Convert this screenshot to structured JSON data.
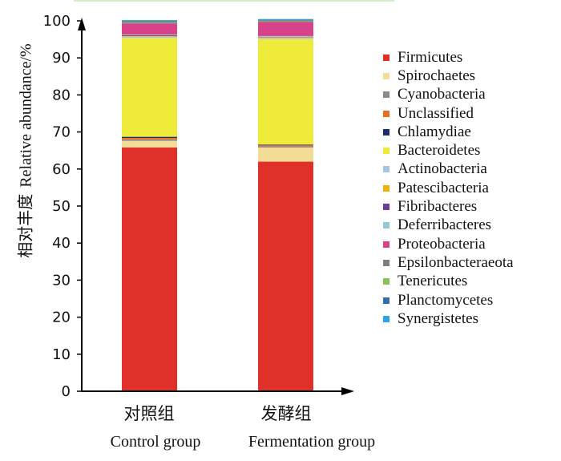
{
  "chart_data": {
    "type": "bar",
    "stacked": true,
    "title": "",
    "ylabel_cn": "相对丰度",
    "ylabel_en": "Relative abundance/%",
    "ylim": [
      0,
      100
    ],
    "yticks": [
      "0",
      "10",
      "20",
      "30",
      "40",
      "50",
      "60",
      "70",
      "80",
      "90",
      "100"
    ],
    "categories": [
      {
        "cn": "对照组",
        "en": "Control group"
      },
      {
        "cn": "发酵组",
        "en": "Fermentation group"
      }
    ],
    "legend_position": "right",
    "series": [
      {
        "name": "Firmicutes",
        "color": "#e0302a",
        "values": [
          65.8,
          62.0
        ]
      },
      {
        "name": "Spirochaetes",
        "color": "#f3dc96",
        "values": [
          1.8,
          3.8
        ]
      },
      {
        "name": "Cyanobacteria",
        "color": "#8c8c8c",
        "values": [
          0.4,
          0.3
        ]
      },
      {
        "name": "Unclassified",
        "color": "#ec6d21",
        "values": [
          0.4,
          0.3
        ]
      },
      {
        "name": "Chlamydiae",
        "color": "#1c2e6b",
        "values": [
          0.3,
          0.2
        ]
      },
      {
        "name": "Bacteroidetes",
        "color": "#eeeb3a",
        "values": [
          26.7,
          28.5
        ]
      },
      {
        "name": "Actinobacteria",
        "color": "#a4c4e6",
        "values": [
          0.3,
          0.3
        ]
      },
      {
        "name": "Patescibacteria",
        "color": "#efb20d",
        "values": [
          0.2,
          0.2
        ]
      },
      {
        "name": "Fibribacteres",
        "color": "#6a3d9a",
        "values": [
          0.2,
          0.1
        ]
      },
      {
        "name": "Deferribacteres",
        "color": "#8fcbd6",
        "values": [
          0.2,
          0.2
        ]
      },
      {
        "name": "Proteobacteria",
        "color": "#d9428b",
        "values": [
          3.0,
          3.8
        ]
      },
      {
        "name": "Epsilonbacteraeota",
        "color": "#7f7f7f",
        "values": [
          0.3,
          0.2
        ]
      },
      {
        "name": "Tenericutes",
        "color": "#8cc157",
        "values": [
          0.2,
          0.2
        ]
      },
      {
        "name": "Planctomycetes",
        "color": "#2f6fb1",
        "values": [
          0.2,
          0.2
        ]
      },
      {
        "name": "Synergistetes",
        "color": "#2ca6dc",
        "values": [
          0.2,
          0.2
        ]
      }
    ]
  }
}
